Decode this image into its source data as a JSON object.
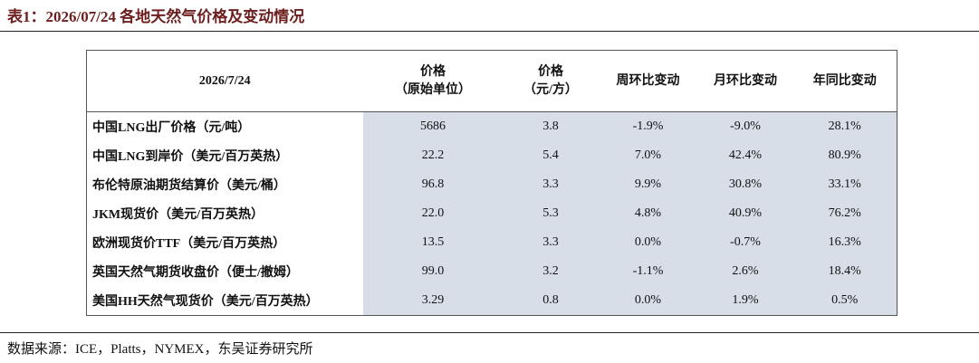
{
  "header": {
    "title": "表1：2026/07/24 各地天然气价格及变动情况"
  },
  "table": {
    "columns": [
      [
        "2026/7/24"
      ],
      [
        "价格",
        "（原始单位）"
      ],
      [
        "价格",
        "（元/方）"
      ],
      [
        "周环比变动"
      ],
      [
        "月环比变动"
      ],
      [
        "年同比变动"
      ]
    ],
    "rows": [
      [
        "中国LNG出厂价格（元/吨）",
        "5686",
        "3.8",
        "-1.9%",
        "-9.0%",
        "28.1%"
      ],
      [
        "中国LNG到岸价（美元/百万英热）",
        "22.2",
        "5.4",
        "7.0%",
        "42.4%",
        "80.9%"
      ],
      [
        "布伦特原油期货结算价（美元/桶）",
        "96.8",
        "3.3",
        "9.9%",
        "30.8%",
        "33.1%"
      ],
      [
        "JKM现货价（美元/百万英热）",
        "22.0",
        "5.3",
        "4.8%",
        "40.9%",
        "76.2%"
      ],
      [
        "欧洲现货价TTF（美元/百万英热）",
        "13.5",
        "3.3",
        "0.0%",
        "-0.7%",
        "16.3%"
      ],
      [
        "英国天然气期货收盘价（便士/撤姆）",
        "99.0",
        "3.2",
        "-1.1%",
        "2.6%",
        "18.4%"
      ],
      [
        "美国HH天然气现货价（美元/百万英热）",
        "3.29",
        "0.8",
        "0.0%",
        "1.9%",
        "0.5%"
      ]
    ]
  },
  "footer": {
    "source": "数据来源：ICE，Platts，NYMEX，东吴证券研究所"
  }
}
